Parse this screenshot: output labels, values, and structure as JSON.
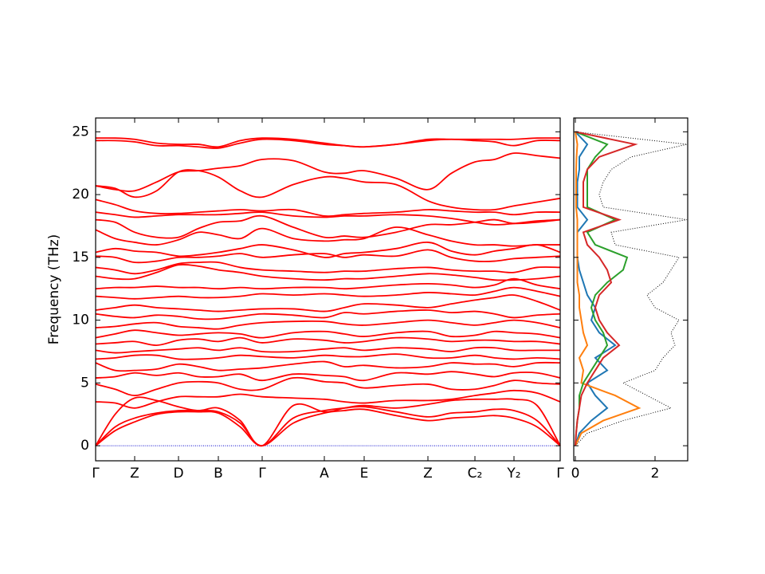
{
  "chart_data": [
    {
      "type": "line",
      "y_label": "Frequency (THz)",
      "color": "#ff0000",
      "baseline_color": "#0000cc",
      "x": [
        0,
        0.245,
        0.49,
        0.765,
        1.04,
        1.29,
        1.54,
        1.815,
        2.09,
        2.48,
        2.87,
        3.12,
        3.37,
        3.77,
        4.17,
        4.465,
        4.76,
        5.005,
        5.25,
        5.54,
        5.83
      ],
      "xlim": [
        0,
        5.83
      ],
      "xticks": [
        {
          "value": 0,
          "label": "Γ"
        },
        {
          "value": 0.49,
          "label": "Z"
        },
        {
          "value": 1.04,
          "label": "D"
        },
        {
          "value": 1.54,
          "label": "B"
        },
        {
          "value": 2.09,
          "label": "Γ"
        },
        {
          "value": 2.87,
          "label": "A"
        },
        {
          "value": 3.37,
          "label": "E"
        },
        {
          "value": 4.17,
          "label": "Z"
        },
        {
          "value": 4.76,
          "label": "C₂"
        },
        {
          "value": 5.25,
          "label": "Y₂"
        },
        {
          "value": 5.83,
          "label": "Γ"
        }
      ],
      "ylim": [
        -1.2,
        26.1
      ],
      "yticks": [
        0,
        5,
        10,
        15,
        20,
        25
      ],
      "series": [
        {
          "values": [
            0,
            1.2,
            1.9,
            2.5,
            2.7,
            2.7,
            2.6,
            1.5,
            0,
            1.8,
            2.6,
            2.8,
            2.9,
            2.4,
            2.0,
            2.2,
            2.3,
            2.4,
            2.2,
            1.5,
            0
          ]
        },
        {
          "values": [
            0,
            1.5,
            2.2,
            2.6,
            2.8,
            2.8,
            2.7,
            1.8,
            0,
            2.2,
            2.8,
            3.0,
            3.1,
            2.7,
            2.3,
            2.6,
            2.7,
            2.9,
            2.8,
            2.0,
            0
          ]
        },
        {
          "values": [
            0,
            2.5,
            3.8,
            3.6,
            3.1,
            2.8,
            3.0,
            2.0,
            0,
            3.2,
            2.7,
            3.0,
            3.2,
            3.0,
            3.3,
            3.6,
            3.7,
            3.7,
            3.7,
            3.2,
            0
          ]
        },
        {
          "values": [
            3.5,
            3.4,
            3.0,
            3.5,
            3.9,
            3.9,
            3.9,
            4.1,
            3.9,
            3.8,
            3.7,
            3.5,
            3.4,
            3.6,
            3.6,
            3.7,
            4.0,
            4.2,
            4.4,
            4.2,
            3.5
          ]
        },
        {
          "values": [
            4.9,
            4.5,
            4.0,
            4.5,
            5.0,
            5.1,
            5.0,
            4.5,
            4.5,
            5.4,
            5.1,
            5.0,
            4.6,
            4.8,
            4.9,
            4.5,
            4.5,
            4.8,
            5.2,
            5.0,
            4.9
          ]
        },
        {
          "values": [
            5.4,
            5.5,
            5.8,
            5.6,
            5.8,
            5.5,
            5.5,
            5.7,
            5.2,
            5.7,
            5.6,
            5.5,
            5.2,
            5.8,
            5.7,
            5.9,
            5.7,
            5.5,
            5.8,
            5.8,
            5.4
          ]
        },
        {
          "values": [
            6.6,
            6.0,
            6.0,
            6.1,
            6.5,
            6.3,
            6.0,
            6.1,
            6.2,
            6.5,
            6.7,
            6.3,
            6.4,
            6.2,
            6.3,
            6.6,
            6.5,
            6.5,
            6.3,
            6.6,
            6.6
          ]
        },
        {
          "values": [
            6.9,
            7.0,
            7.2,
            7.2,
            6.9,
            6.9,
            7.0,
            7.2,
            7.1,
            7.0,
            7.2,
            7.1,
            7.1,
            7.3,
            7.0,
            7.0,
            7.2,
            7.0,
            6.9,
            7.0,
            6.9
          ]
        },
        {
          "values": [
            7.6,
            7.4,
            7.5,
            7.6,
            7.7,
            7.8,
            7.6,
            7.8,
            7.5,
            7.5,
            7.7,
            7.8,
            7.6,
            7.8,
            7.7,
            7.5,
            7.8,
            7.8,
            7.6,
            7.6,
            7.6
          ]
        },
        {
          "values": [
            8.1,
            8.2,
            8.3,
            8.0,
            8.4,
            8.5,
            8.3,
            8.6,
            8.2,
            8.5,
            8.4,
            8.2,
            8.3,
            8.6,
            8.5,
            8.3,
            8.4,
            8.4,
            8.3,
            8.3,
            8.1
          ]
        },
        {
          "values": [
            8.6,
            8.9,
            9.2,
            9.0,
            8.8,
            8.9,
            9.0,
            8.9,
            8.6,
            9.0,
            9.1,
            8.9,
            8.7,
            9.0,
            9.1,
            8.7,
            8.8,
            9.1,
            9.0,
            8.9,
            8.6
          ]
        },
        {
          "values": [
            9.4,
            9.5,
            9.7,
            9.8,
            9.5,
            9.4,
            9.3,
            9.6,
            9.8,
            9.9,
            9.9,
            9.7,
            9.6,
            9.8,
            10.0,
            9.8,
            9.6,
            9.8,
            10.0,
            9.8,
            9.4
          ]
        },
        {
          "values": [
            10.5,
            10.3,
            10.2,
            10.4,
            10.3,
            10.1,
            10.1,
            10.3,
            10.5,
            10.4,
            10.2,
            10.6,
            10.5,
            10.7,
            10.8,
            10.6,
            10.7,
            10.5,
            10.2,
            10.4,
            10.5
          ]
        },
        {
          "values": [
            10.8,
            11.0,
            11.2,
            11.0,
            10.9,
            10.8,
            10.7,
            10.8,
            10.9,
            10.9,
            10.7,
            11.0,
            11.3,
            11.2,
            11.0,
            11.3,
            11.6,
            11.8,
            12.0,
            11.5,
            10.8
          ]
        },
        {
          "values": [
            11.9,
            11.8,
            11.7,
            11.8,
            11.9,
            11.8,
            11.8,
            11.9,
            12.1,
            12.0,
            12.1,
            12.0,
            11.9,
            12.0,
            12.2,
            12.1,
            12.0,
            12.3,
            12.6,
            12.3,
            11.9
          ]
        },
        {
          "values": [
            12.5,
            12.6,
            12.6,
            12.7,
            12.6,
            12.6,
            12.5,
            12.6,
            12.5,
            12.6,
            12.6,
            12.5,
            12.6,
            12.8,
            12.9,
            12.8,
            12.6,
            12.8,
            13.3,
            12.8,
            12.5
          ]
        },
        {
          "values": [
            13.5,
            13.3,
            13.3,
            13.8,
            14.4,
            14.3,
            14.0,
            13.8,
            13.5,
            13.3,
            13.2,
            13.3,
            13.3,
            13.5,
            13.7,
            13.6,
            13.4,
            13.2,
            13.2,
            13.3,
            13.5
          ]
        },
        {
          "values": [
            14.2,
            14.0,
            13.7,
            14.0,
            14.5,
            14.6,
            14.6,
            14.2,
            14.0,
            13.9,
            13.8,
            13.9,
            13.9,
            14.1,
            14.2,
            14.0,
            13.9,
            13.9,
            13.8,
            14.2,
            14.2
          ]
        },
        {
          "values": [
            15.1,
            15.0,
            14.6,
            14.7,
            15.0,
            15.0,
            15.1,
            15.3,
            15.0,
            15.2,
            15.3,
            15.0,
            15.2,
            15.1,
            15.6,
            15.0,
            14.7,
            14.7,
            14.9,
            15.0,
            15.1
          ]
        },
        {
          "values": [
            15.4,
            15.7,
            15.5,
            15.4,
            15.1,
            15.2,
            15.4,
            15.7,
            16.0,
            15.6,
            15.0,
            15.3,
            15.4,
            15.7,
            16.2,
            15.5,
            15.2,
            15.5,
            15.7,
            16.0,
            15.4
          ]
        },
        {
          "values": [
            17.2,
            16.5,
            16.2,
            16.0,
            16.4,
            17.0,
            16.8,
            16.5,
            17.3,
            16.5,
            16.3,
            16.4,
            16.5,
            17.4,
            16.8,
            16.3,
            16.0,
            16.0,
            15.9,
            16.0,
            16.0
          ]
        },
        {
          "values": [
            18.0,
            17.8,
            17.0,
            16.6,
            16.6,
            17.3,
            17.8,
            17.9,
            18.3,
            17.4,
            16.6,
            16.7,
            16.6,
            17.0,
            17.6,
            17.6,
            17.8,
            18.0,
            17.7,
            17.8,
            18.0
          ]
        },
        {
          "values": [
            18.6,
            18.4,
            18.2,
            18.3,
            18.4,
            18.4,
            18.4,
            18.5,
            18.6,
            18.3,
            18.2,
            18.3,
            18.3,
            18.4,
            18.3,
            18.1,
            17.8,
            17.6,
            17.7,
            17.9,
            18.0
          ]
        },
        {
          "values": [
            19.6,
            19.2,
            18.7,
            18.5,
            18.5,
            18.6,
            18.7,
            18.8,
            18.7,
            18.8,
            18.3,
            18.4,
            18.5,
            18.6,
            18.8,
            18.7,
            18.6,
            18.6,
            18.4,
            18.6,
            18.6
          ]
        },
        {
          "values": [
            20.7,
            20.5,
            19.8,
            20.3,
            21.8,
            21.9,
            21.4,
            20.3,
            19.8,
            20.8,
            21.4,
            21.3,
            21.0,
            20.8,
            19.5,
            19.0,
            18.8,
            18.8,
            19.1,
            19.4,
            19.7
          ]
        },
        {
          "values": [
            20.7,
            20.4,
            20.3,
            21.0,
            21.8,
            21.9,
            22.1,
            22.3,
            22.8,
            22.7,
            21.8,
            21.7,
            21.9,
            21.3,
            20.4,
            21.7,
            22.6,
            22.8,
            23.3,
            23.1,
            22.9
          ]
        },
        {
          "values": [
            24.3,
            24.3,
            24.2,
            23.9,
            23.9,
            23.8,
            23.7,
            24.1,
            24.4,
            24.3,
            24.0,
            23.9,
            23.8,
            24.0,
            24.3,
            24.4,
            24.3,
            24.2,
            23.9,
            24.3,
            24.3
          ]
        },
        {
          "values": [
            24.5,
            24.5,
            24.4,
            24.1,
            24.0,
            24.0,
            23.8,
            24.3,
            24.5,
            24.4,
            24.1,
            23.9,
            23.8,
            24.0,
            24.4,
            24.4,
            24.4,
            24.4,
            24.4,
            24.5,
            24.5
          ]
        }
      ]
    },
    {
      "type": "dos",
      "y": [
        0,
        1,
        2,
        3,
        4,
        5,
        6,
        7,
        8,
        9,
        10,
        11,
        12,
        13,
        14,
        15,
        16,
        17,
        18,
        19,
        20,
        21,
        22,
        23,
        24,
        25
      ],
      "ylim": [
        -1.2,
        26.1
      ],
      "yticks": [
        0,
        5,
        10,
        15,
        20,
        25
      ],
      "xlim": [
        -0.04,
        2.82
      ],
      "xticks": [
        0,
        2
      ],
      "series": [
        {
          "color": "#000000",
          "style": "dotted",
          "values": [
            0,
            0.3,
            1.2,
            2.4,
            1.8,
            1.2,
            2.0,
            2.2,
            2.5,
            2.4,
            2.6,
            2.0,
            1.8,
            2.2,
            2.4,
            2.6,
            1.0,
            0.9,
            2.8,
            0.7,
            0.6,
            0.7,
            0.9,
            1.4,
            2.8,
            0
          ]
        },
        {
          "color": "#1f77b4",
          "style": "solid",
          "values": [
            0,
            0.1,
            0.4,
            0.8,
            0.5,
            0.3,
            0.8,
            0.5,
            1.0,
            0.6,
            0.4,
            0.5,
            0.3,
            0.2,
            0.1,
            0.05,
            0.05,
            0.05,
            0.3,
            0.05,
            0.05,
            0.05,
            0.1,
            0.1,
            0.3,
            0
          ]
        },
        {
          "color": "#ff7f0e",
          "style": "solid",
          "values": [
            0,
            0.15,
            0.7,
            1.6,
            1.0,
            0.15,
            0.2,
            0.1,
            0.3,
            0.2,
            0.15,
            0.1,
            0.1,
            0.05,
            0.05,
            0.05,
            0.05,
            0.05,
            0.05,
            0.02,
            0.02,
            0.02,
            0.02,
            0.03,
            0.05,
            0
          ]
        },
        {
          "color": "#2ca02c",
          "style": "solid",
          "values": [
            0,
            0.02,
            0.05,
            0.1,
            0.1,
            0.2,
            0.4,
            0.6,
            0.8,
            0.7,
            0.5,
            0.4,
            0.5,
            0.8,
            1.2,
            1.3,
            0.5,
            0.3,
            1.0,
            0.3,
            0.3,
            0.3,
            0.3,
            0.5,
            0.8,
            0
          ]
        },
        {
          "color": "#d62728",
          "style": "solid",
          "values": [
            0,
            0.02,
            0.05,
            0.1,
            0.15,
            0.3,
            0.5,
            0.7,
            1.1,
            0.8,
            0.6,
            0.5,
            0.6,
            0.9,
            0.8,
            0.6,
            0.3,
            0.2,
            1.1,
            0.2,
            0.2,
            0.2,
            0.3,
            0.6,
            1.5,
            0
          ]
        }
      ]
    }
  ]
}
